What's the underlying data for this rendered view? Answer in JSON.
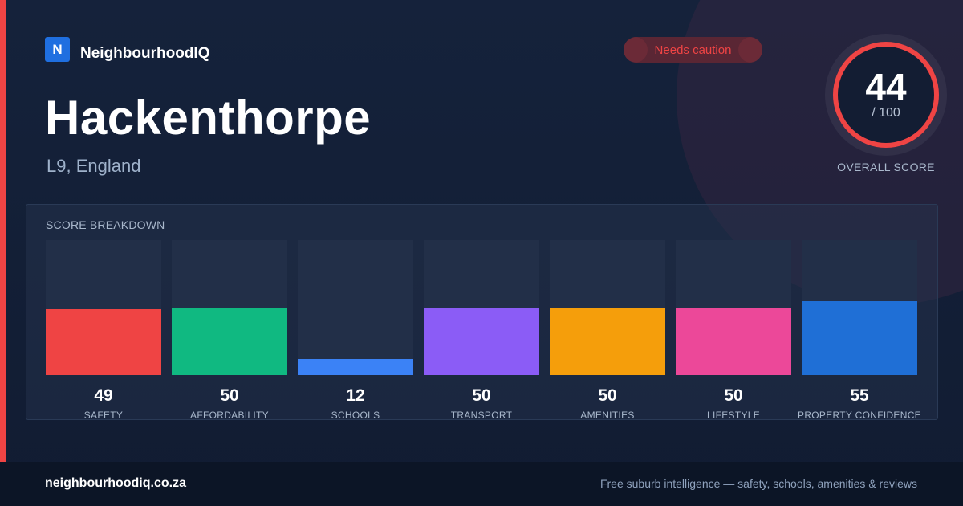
{
  "brand": {
    "logo_letter": "N",
    "name": "NeighbourhoodIQ"
  },
  "suburb": {
    "name": "Hackenthorpe",
    "location": "L9, England"
  },
  "badge": {
    "label": "Needs caution",
    "color": "#ef4444"
  },
  "overall": {
    "score": "44",
    "max": "/ 100",
    "label": "OVERALL SCORE"
  },
  "breakdown": {
    "title": "SCORE BREAKDOWN",
    "items": [
      {
        "label": "SAFETY",
        "value": 49,
        "color": "#ef4444"
      },
      {
        "label": "AFFORDABILITY",
        "value": 50,
        "color": "#10b981"
      },
      {
        "label": "SCHOOLS",
        "value": 12,
        "color": "#3b82f6"
      },
      {
        "label": "TRANSPORT",
        "value": 50,
        "color": "#8b5cf6"
      },
      {
        "label": "AMENITIES",
        "value": 50,
        "color": "#f59e0b"
      },
      {
        "label": "LIFESTYLE",
        "value": 50,
        "color": "#ec4899"
      },
      {
        "label": "PROPERTY CONFIDENCE",
        "value": 55,
        "color": "#1f6fd6"
      }
    ]
  },
  "footer": {
    "url": "neighbourhoodiq.co.za",
    "tagline": "Free suburb intelligence — safety, schools, amenities & reviews"
  }
}
